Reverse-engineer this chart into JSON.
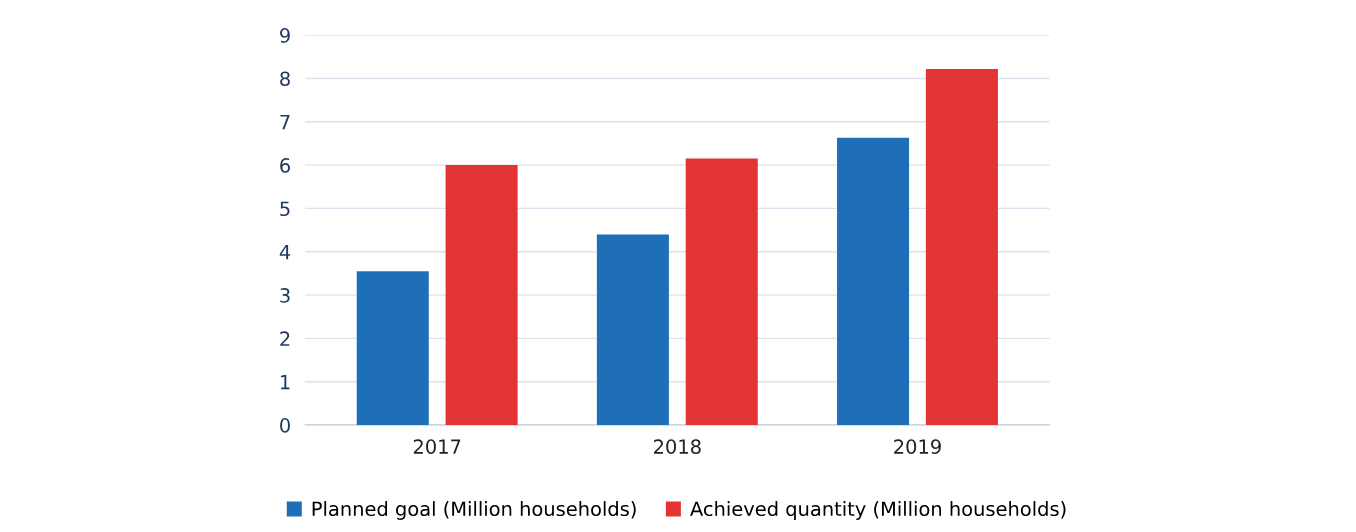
{
  "chart_data": {
    "type": "bar",
    "categories": [
      "2017",
      "2018",
      "2019"
    ],
    "series": [
      {
        "name": "Planned goal (Million households)",
        "color": "#1f6fb8",
        "values": [
          3.55,
          4.4,
          6.63
        ]
      },
      {
        "name": "Achieved quantity (Million households)",
        "color": "#e33434",
        "values": [
          6.0,
          6.15,
          8.22
        ]
      }
    ],
    "ylim": [
      0,
      9
    ],
    "yticks": [
      0,
      1,
      2,
      3,
      4,
      5,
      6,
      7,
      8,
      9
    ],
    "grid": "y",
    "legend": "bottom"
  }
}
